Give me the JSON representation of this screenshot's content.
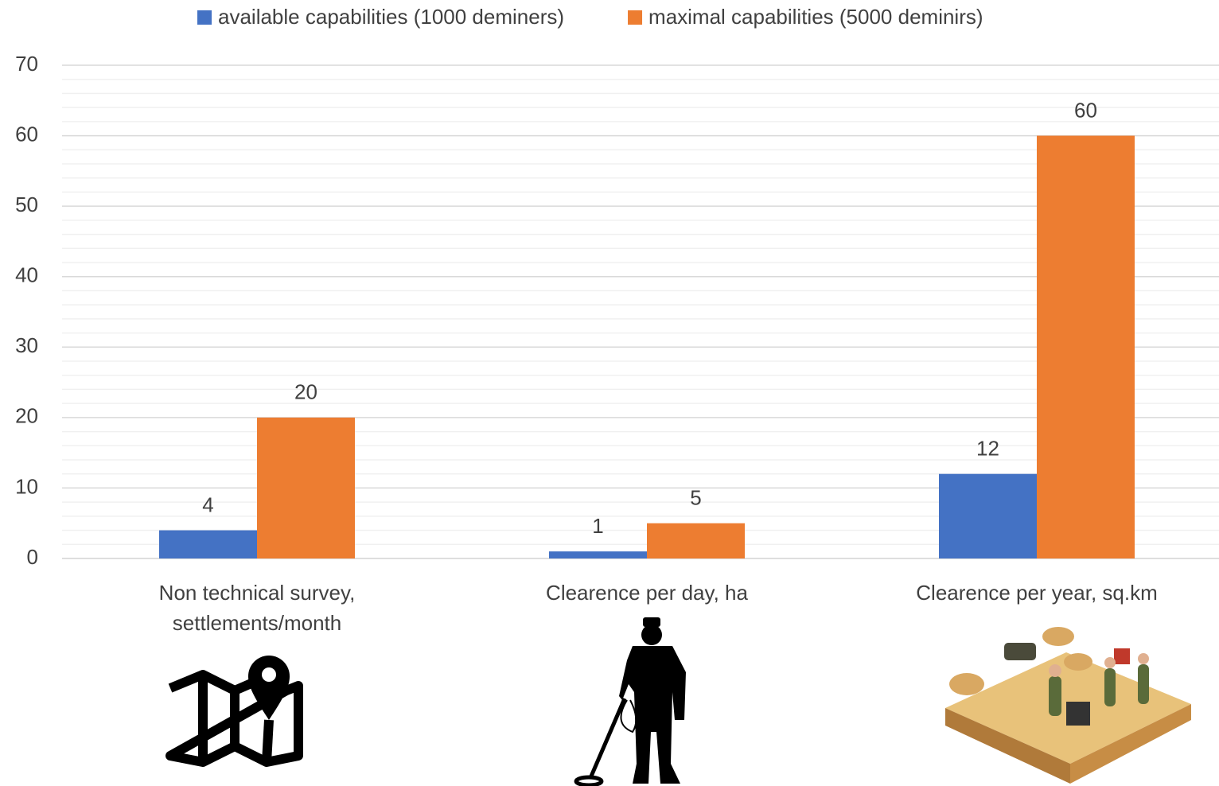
{
  "chart_data": {
    "type": "bar",
    "categories": [
      "Non technical survey, settlements/month",
      "Clearence per day, ha",
      "Clearence per year, sq.km"
    ],
    "series": [
      {
        "name": "available capabilities (1000 deminers)",
        "color": "#4472c4",
        "values": [
          4,
          1,
          12
        ]
      },
      {
        "name": "maximal capabilities (5000 deminirs)",
        "color": "#ed7d31",
        "values": [
          20,
          5,
          60
        ]
      }
    ],
    "ylim": [
      0,
      70
    ],
    "yticks": [
      0,
      10,
      20,
      30,
      40,
      50,
      60,
      70
    ],
    "minor_yticks": [
      2,
      4,
      6,
      8,
      12,
      14,
      16,
      18,
      22,
      24,
      26,
      28,
      32,
      34,
      36,
      38,
      42,
      44,
      46,
      48,
      52,
      54,
      56,
      58,
      62,
      64,
      66,
      68
    ],
    "grid": true,
    "legend": "top"
  }
}
